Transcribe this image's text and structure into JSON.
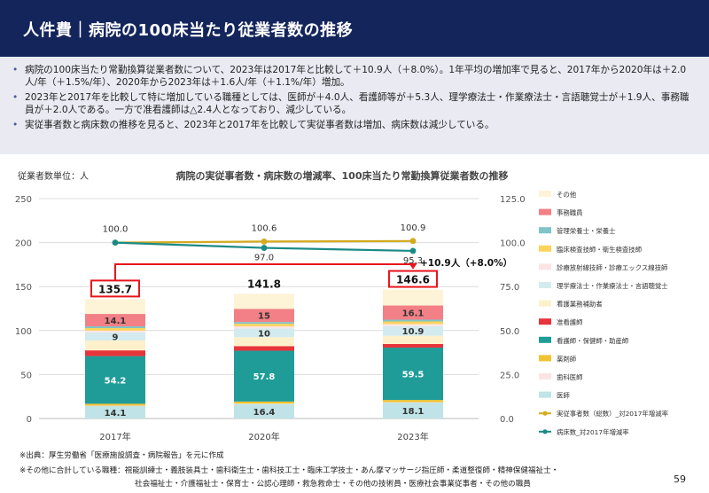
{
  "header": {
    "title": "人件費｜病院の100床当たり従業者数の推移"
  },
  "summary": {
    "bullets": [
      "病院の100床当たり常勤換算従業者数について、2023年は2017年と比較して＋10.9人（＋8.0%）。1年平均の増加率で見ると、2017年から2020年は＋2.0人/年（＋1.5%/年）、2020年から2023年は＋1.6人/年（＋1.1%/年）増加。",
      "2023年と2017年を比較して特に増加している職種としては、医師が＋4.0人、看護師等が＋5.3人、理学療法士・作業療法士・言語聴覚士が＋1.9人、事務職員が＋2.0人である。一方で准看護師は△2.4人となっており、減少している。",
      "実従事者数と病床数の推移を見ると、2023年と2017年を比較して実従事者数は増加、病床数は減少している。"
    ]
  },
  "chart_data": {
    "type": "bar",
    "title": "病院の実従事者数・病床数の増減率、100床当たり常勤換算従業者数の推移",
    "ylabel": "従業者数単位：人",
    "ylim": [
      0,
      250
    ],
    "yticks": [
      "0",
      "50",
      "100",
      "150",
      "200",
      "250"
    ],
    "y2lim": [
      0,
      125
    ],
    "y2ticks": [
      "0.0",
      "25.0",
      "50.0",
      "75.0",
      "100.0",
      "125.0"
    ],
    "categories": [
      "2017年",
      "2020年",
      "2023年"
    ],
    "totals": [
      135.7,
      141.8,
      146.6
    ],
    "total_labels": [
      "135.7",
      "141.8",
      "146.6"
    ],
    "series": [
      {
        "name": "医師",
        "values": [
          14.1,
          16.4,
          18.1
        ],
        "labels": [
          "14.1",
          "16.4",
          "18.1"
        ],
        "color": "#bfe3e6"
      },
      {
        "name": "歯科医師",
        "values": [
          0.5,
          0.5,
          0.5
        ],
        "labels": [
          "",
          "",
          ""
        ],
        "color": "#fde3e3"
      },
      {
        "name": "薬剤師",
        "values": [
          2.2,
          2.4,
          2.5
        ],
        "labels": [
          "",
          "",
          ""
        ],
        "color": "#f1c232"
      },
      {
        "name": "看護師・保健師・助産師",
        "values": [
          54.2,
          57.8,
          59.5
        ],
        "labels": [
          "54.2",
          "57.8",
          "59.5"
        ],
        "color": "#1f9c98"
      },
      {
        "name": "准看護師",
        "values": [
          6.5,
          5.2,
          4.1
        ],
        "labels": [
          "",
          "",
          ""
        ],
        "color": "#e8343b"
      },
      {
        "name": "看護業務補助者",
        "values": [
          11.3,
          10.2,
          9.4
        ],
        "labels": [
          "",
          "",
          ""
        ],
        "color": "#fdf1cc"
      },
      {
        "name": "理学療法士・作業療法士・言語聴覚士",
        "values": [
          9,
          10,
          10.9
        ],
        "labels": [
          "9",
          "10",
          "10.9"
        ],
        "color": "#d3ebee"
      },
      {
        "name": "診療放射線技師・診療エックス線技師",
        "values": [
          2.2,
          2.3,
          2.4
        ],
        "labels": [
          "",
          "",
          ""
        ],
        "color": "#fce4e4"
      },
      {
        "name": "臨床検査技師・衛生検査技師",
        "values": [
          2.8,
          2.9,
          3.0
        ],
        "labels": [
          "",
          "",
          ""
        ],
        "color": "#fcd45a"
      },
      {
        "name": "管理栄養士・栄養士",
        "values": [
          2.0,
          2.0,
          2.0
        ],
        "labels": [
          "",
          "",
          ""
        ],
        "color": "#7ec4c8"
      },
      {
        "name": "事務職員",
        "values": [
          14.1,
          15,
          16.1
        ],
        "labels": [
          "14.1",
          "15",
          "16.1"
        ],
        "color": "#f28086"
      },
      {
        "name": "その他",
        "values": [
          16.8,
          17.1,
          18.1
        ],
        "labels": [
          "",
          "",
          ""
        ],
        "color": "#fdf3d7"
      }
    ],
    "lines": [
      {
        "name": "実従事者数（総数）_対2017年増減率",
        "values": [
          100.0,
          100.6,
          100.9
        ],
        "labels": [
          "100.0",
          "100.6",
          "100.9"
        ],
        "color": "#d4aa1e"
      },
      {
        "name": "病床数_対2017年増減率",
        "values": [
          100.0,
          97.0,
          95.3
        ],
        "labels": [
          "",
          "97.0",
          "95.3"
        ],
        "color": "#1a8a86"
      }
    ],
    "annotation": "+10.9人（+8.0%）",
    "legend": "right"
  },
  "footnotes": {
    "source": "※出典：厚生労働省「医療施設調査・病院報告」を元に作成",
    "other_1": "※その他に合計している職種：視能訓練士・義肢装具士・歯科衛生士・歯科技工士・臨床工学技士・あん摩マッサージ指圧師・柔道整復師・精神保健福祉士・",
    "other_2": "社会福祉士・介護福祉士・保育士・公認心理師・救急救命士・その他の技術員・医療社会事業従事者・その他の職員"
  },
  "page": {
    "number": "59"
  }
}
